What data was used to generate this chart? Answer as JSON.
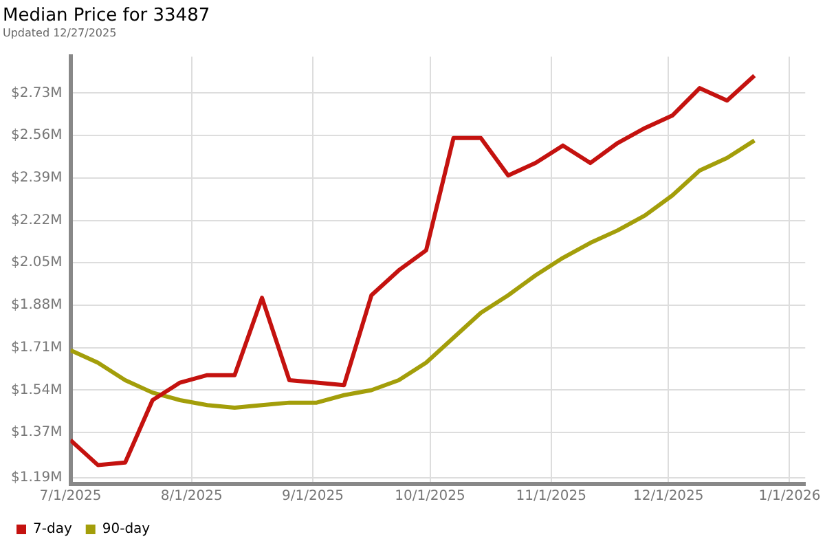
{
  "chart_data": {
    "type": "line",
    "title": "Median Price for 33487",
    "subtitle": "Updated 12/27/2025",
    "x": [
      "2025-07-01",
      "2025-07-08",
      "2025-07-15",
      "2025-07-22",
      "2025-07-29",
      "2025-08-05",
      "2025-08-12",
      "2025-08-19",
      "2025-08-26",
      "2025-09-02",
      "2025-09-09",
      "2025-09-16",
      "2025-09-23",
      "2025-09-30",
      "2025-10-07",
      "2025-10-14",
      "2025-10-21",
      "2025-10-28",
      "2025-11-04",
      "2025-11-11",
      "2025-11-18",
      "2025-11-25",
      "2025-12-02",
      "2025-12-09",
      "2025-12-16",
      "2025-12-23"
    ],
    "series": [
      {
        "name": "7-day",
        "color": "#c4120f",
        "values": [
          1.34,
          1.24,
          1.25,
          1.5,
          1.57,
          1.6,
          1.6,
          1.91,
          1.58,
          1.57,
          1.56,
          1.92,
          2.02,
          2.1,
          2.55,
          2.55,
          2.4,
          2.45,
          2.52,
          2.45,
          2.53,
          2.59,
          2.64,
          2.75,
          2.7,
          2.8
        ]
      },
      {
        "name": "90-day",
        "color": "#a39e0a",
        "values": [
          1.7,
          1.65,
          1.58,
          1.53,
          1.5,
          1.48,
          1.47,
          1.48,
          1.49,
          1.49,
          1.52,
          1.54,
          1.58,
          1.65,
          1.75,
          1.85,
          1.92,
          2.0,
          2.07,
          2.13,
          2.18,
          2.24,
          2.32,
          2.42,
          2.47,
          2.54
        ]
      }
    ],
    "xlim": [
      "2025-07-01",
      "2026-01-05"
    ],
    "xticks": [
      {
        "value": "2025-07-01",
        "label": "7/1/2025"
      },
      {
        "value": "2025-08-01",
        "label": "8/1/2025"
      },
      {
        "value": "2025-09-01",
        "label": "9/1/2025"
      },
      {
        "value": "2025-10-01",
        "label": "10/1/2025"
      },
      {
        "value": "2025-11-01",
        "label": "11/1/2025"
      },
      {
        "value": "2025-12-01",
        "label": "12/1/2025"
      },
      {
        "value": "2026-01-01",
        "label": "1/1/2026"
      }
    ],
    "ylim": [
      1.164,
      2.876
    ],
    "yticks": [
      {
        "value": 1.19,
        "label": "$1.19M"
      },
      {
        "value": 1.37,
        "label": "$1.37M"
      },
      {
        "value": 1.54,
        "label": "$1.54M"
      },
      {
        "value": 1.71,
        "label": "$1.71M"
      },
      {
        "value": 1.88,
        "label": "$1.88M"
      },
      {
        "value": 2.05,
        "label": "$2.05M"
      },
      {
        "value": 2.22,
        "label": "$2.22M"
      },
      {
        "value": 2.39,
        "label": "$2.39M"
      },
      {
        "value": 2.56,
        "label": "$2.56M"
      },
      {
        "value": 2.73,
        "label": "$2.73M"
      }
    ],
    "grid": true,
    "legend": "bottom left",
    "marker": "none",
    "line_style": "solid"
  }
}
